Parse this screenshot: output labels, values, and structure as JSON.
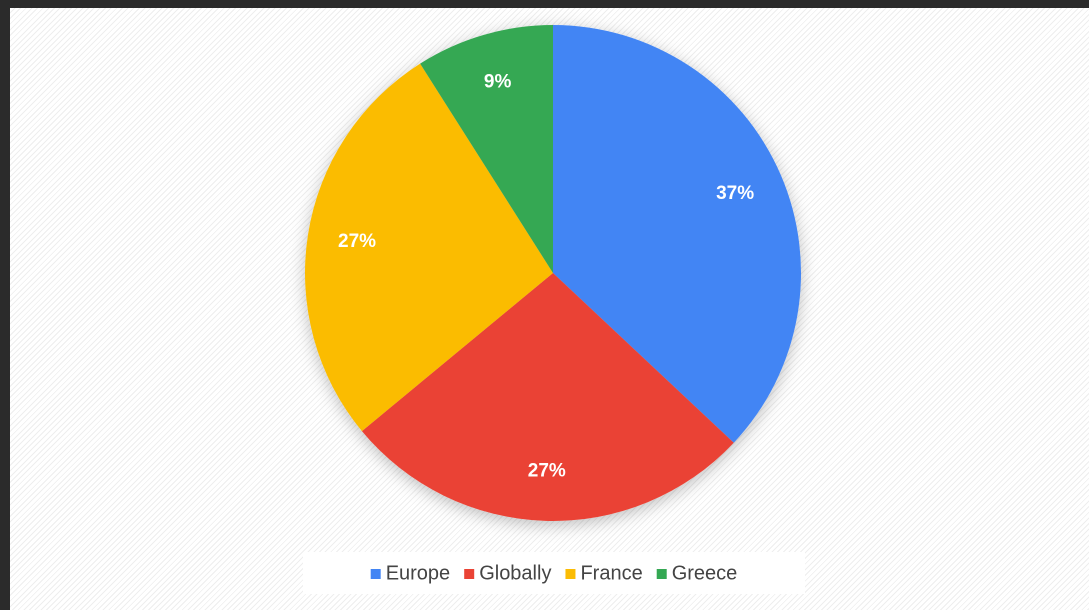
{
  "chart_data": {
    "type": "pie",
    "categories": [
      "Europe",
      "Globally",
      "France",
      "Greece"
    ],
    "values": [
      37,
      27,
      27,
      9
    ],
    "value_labels": [
      "37%",
      "27%",
      "27%",
      "9%"
    ],
    "colors": [
      "#4285f4",
      "#ea4335",
      "#fbbc04",
      "#34a853"
    ],
    "legend": "bottom"
  }
}
